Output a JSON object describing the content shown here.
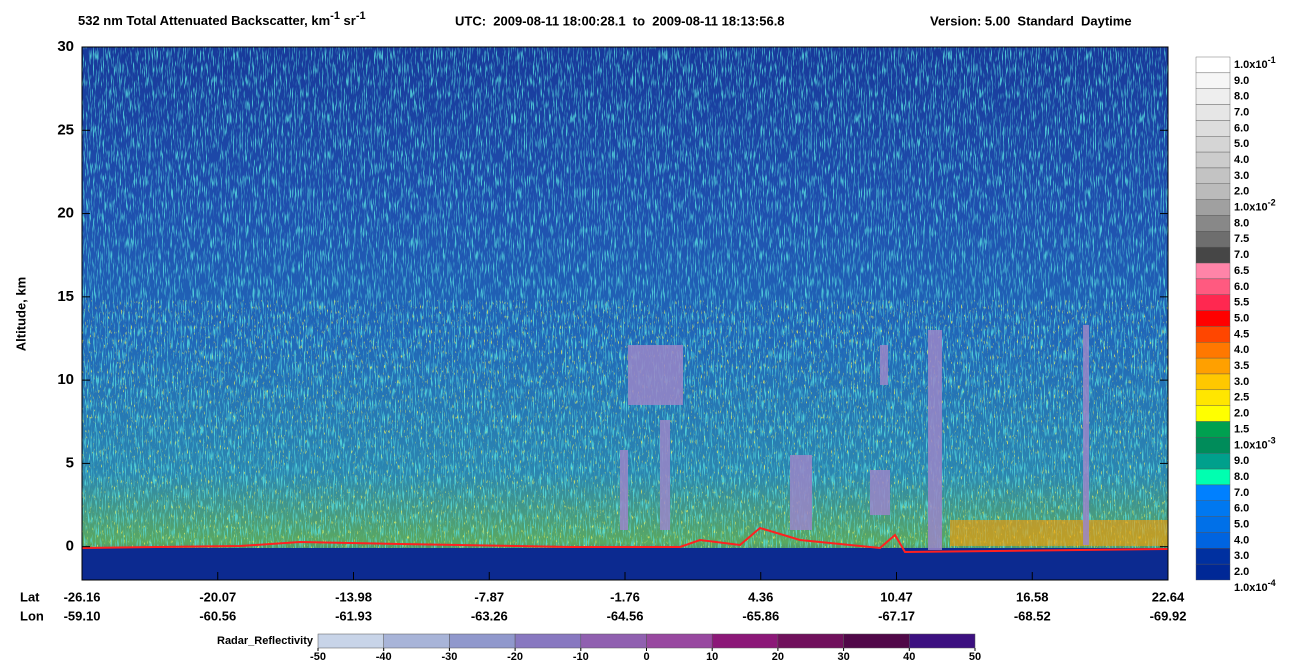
{
  "chart_data": {
    "type": "curtain",
    "title": {
      "text": "532 nm Total Attenuated Backscatter, km",
      "sup1": "-1",
      "mid": " sr",
      "sup2": "-1"
    },
    "utc": "UTC:  2009-08-11 18:00:28.1  to  2009-08-11 18:13:56.8",
    "version": "Version: 5.00  Standard  Daytime",
    "ylabel": "Altitude, km",
    "ylim": [
      -2,
      30
    ],
    "yticks": [
      0,
      5,
      10,
      15,
      20,
      25,
      30
    ],
    "x_row_labels": [
      "Lat",
      "Lon"
    ],
    "lat_labels": [
      "-26.16",
      "-20.07",
      "-13.98",
      "-7.87",
      "-1.76",
      "4.36",
      "10.47",
      "16.58",
      "22.64"
    ],
    "lon_labels": [
      "-59.10",
      "-60.56",
      "-61.93",
      "-63.26",
      "-64.56",
      "-65.86",
      "-67.17",
      "-68.52",
      "-69.92"
    ],
    "colorbar": {
      "labels": [
        {
          "text": "1.0x10",
          "sup": "-1"
        },
        "9.0",
        "8.0",
        "7.0",
        "6.0",
        "5.0",
        "4.0",
        "3.0",
        "2.0",
        {
          "text": "1.0x10",
          "sup": "-2"
        },
        "8.0",
        "7.5",
        "7.0",
        "6.5",
        "6.0",
        "5.5",
        "5.0",
        "4.5",
        "4.0",
        "3.5",
        "3.0",
        "2.5",
        "2.0",
        "1.5",
        {
          "text": "1.0x10",
          "sup": "-3"
        },
        "9.0",
        "8.0",
        "7.0",
        "6.0",
        "5.0",
        "4.0",
        "3.0",
        "2.0",
        {
          "text": "1.0x10",
          "sup": "-4"
        }
      ],
      "colors": [
        "#ffffff",
        "#f6f6f6",
        "#eeeeee",
        "#e6e6e6",
        "#dddddd",
        "#d5d5d5",
        "#cccccc",
        "#c3c3c3",
        "#bbbbbb",
        "#a0a0a0",
        "#888888",
        "#6e6e6e",
        "#464646",
        "#ff84a8",
        "#ff5a80",
        "#ff2850",
        "#ff0000",
        "#ff4600",
        "#ff7800",
        "#ffa000",
        "#ffc800",
        "#ffe600",
        "#ffff00",
        "#00a050",
        "#008c5a",
        "#00a08c",
        "#00ffb0",
        "#0080ff",
        "#0078f0",
        "#0070e8",
        "#0064e0",
        "#0030a0",
        "#002896"
      ]
    },
    "radar": {
      "label": "Radar_Reflectivity",
      "ticks": [
        -50,
        -40,
        -30,
        -20,
        -10,
        0,
        10,
        20,
        30,
        40,
        50
      ],
      "colors": [
        "#c8d4e8",
        "#a8b4d8",
        "#9098cc",
        "#8878c0",
        "#9060b0",
        "#9848a0",
        "#8c1878",
        "#70105c",
        "#500848",
        "#3c1080"
      ]
    }
  }
}
